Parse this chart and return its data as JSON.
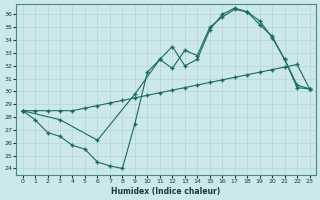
{
  "xlabel": "Humidex (Indice chaleur)",
  "bg_color": "#cce8ec",
  "line_color": "#1a6b5e",
  "grid_color": "#b8d8dc",
  "ylim": [
    23.5,
    36.8
  ],
  "xlim": [
    -0.5,
    23.5
  ],
  "yticks": [
    24,
    25,
    26,
    27,
    28,
    29,
    30,
    31,
    32,
    33,
    34,
    35,
    36
  ],
  "xticks": [
    0,
    1,
    2,
    3,
    4,
    5,
    6,
    7,
    8,
    9,
    10,
    11,
    12,
    13,
    14,
    15,
    16,
    17,
    18,
    19,
    20,
    21,
    22,
    23
  ],
  "series1_x": [
    0,
    1,
    2,
    3,
    4,
    5,
    6,
    7,
    8,
    9,
    10,
    11,
    12,
    13,
    14,
    15,
    16,
    17,
    18,
    19,
    20,
    21,
    22,
    23
  ],
  "series1_y": [
    28.5,
    28.5,
    28.5,
    28.5,
    28.5,
    28.7,
    28.9,
    29.1,
    29.3,
    29.5,
    29.7,
    29.9,
    30.1,
    30.3,
    30.5,
    30.7,
    30.9,
    31.1,
    31.3,
    31.5,
    31.7,
    31.9,
    32.1,
    30.2
  ],
  "series2_x": [
    0,
    1,
    2,
    3,
    4,
    5,
    6,
    7,
    8,
    9,
    10,
    11,
    12,
    13,
    14,
    15,
    16,
    17,
    18,
    19,
    20,
    21,
    22,
    23
  ],
  "series2_y": [
    28.5,
    27.8,
    26.8,
    26.5,
    25.8,
    25.5,
    24.5,
    24.2,
    24.0,
    27.5,
    31.5,
    32.5,
    31.8,
    33.2,
    32.8,
    35.0,
    35.8,
    36.4,
    36.2,
    35.5,
    34.2,
    32.5,
    30.5,
    30.2
  ],
  "series3_x": [
    0,
    3,
    6,
    9,
    11,
    12,
    13,
    14,
    15,
    16,
    17,
    18,
    19,
    20,
    21,
    22,
    23
  ],
  "series3_y": [
    28.5,
    27.8,
    26.2,
    29.8,
    32.5,
    33.5,
    32.0,
    32.5,
    34.8,
    36.0,
    36.5,
    36.2,
    35.2,
    34.3,
    32.5,
    30.3,
    30.2
  ]
}
